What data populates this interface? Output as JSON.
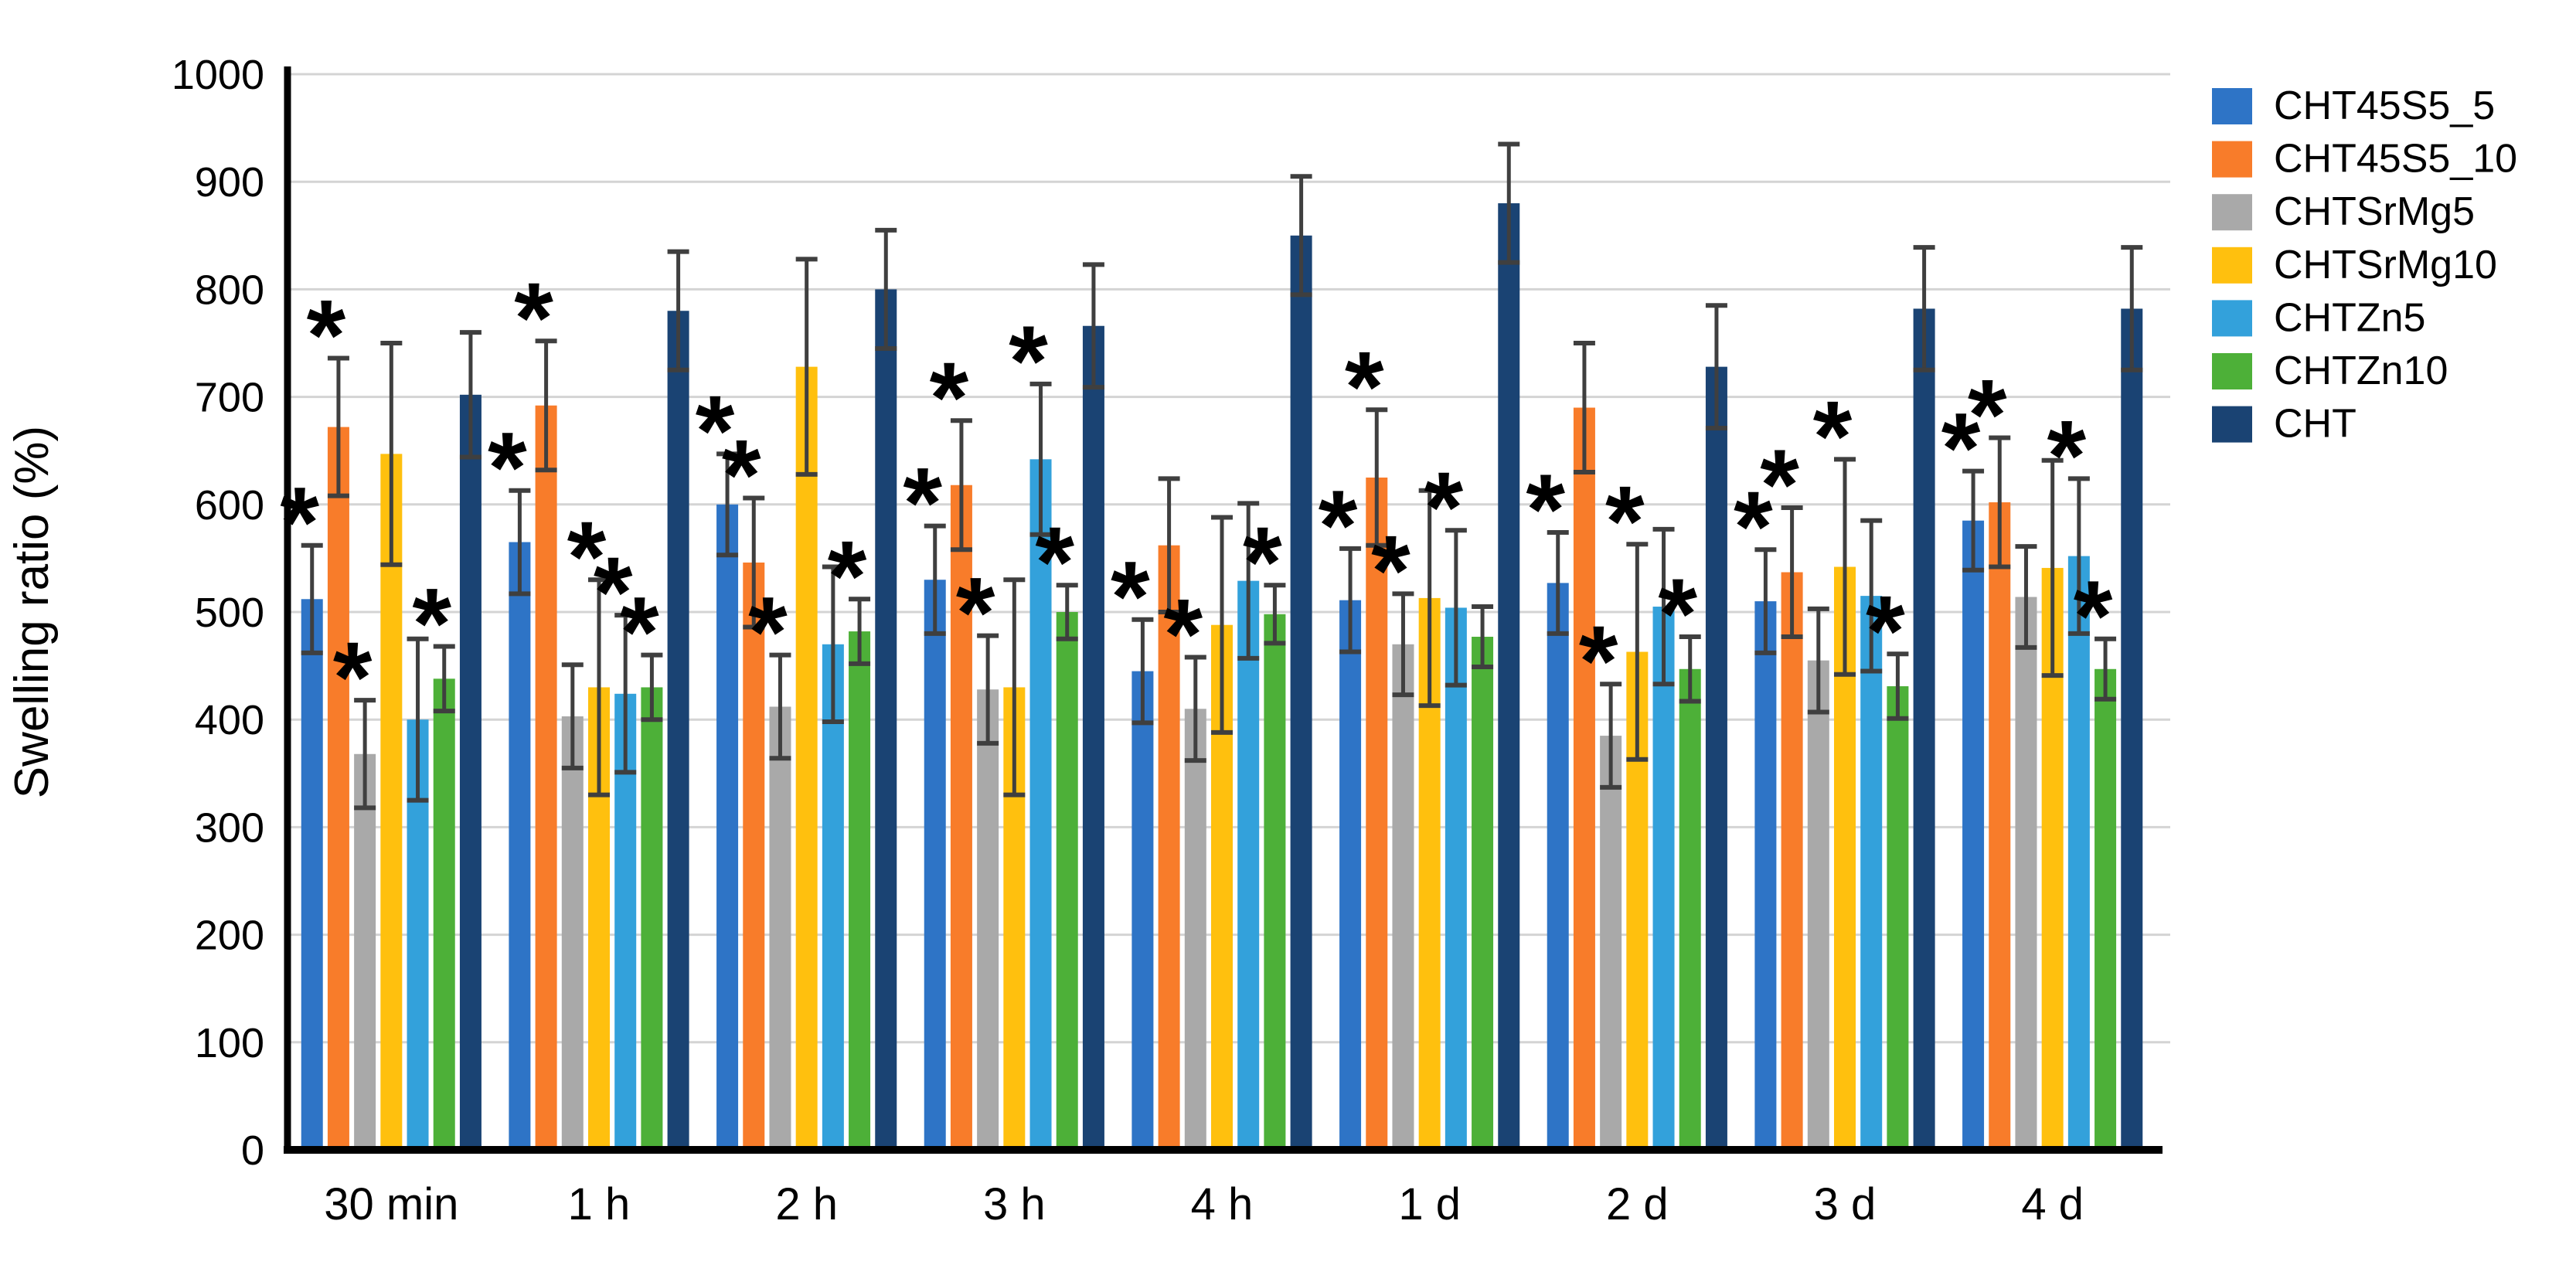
{
  "chart_data": {
    "type": "bar",
    "title": "",
    "ylabel": "Swelling ratio (%)",
    "xlabel": "",
    "ylim": [
      0,
      1000
    ],
    "ytick_step": 100,
    "grid": true,
    "legend_position": "right",
    "significance_marker": "*",
    "grid_color": "#D4D4D4",
    "error_bar_color": "#3F3F3F",
    "axis_color": "#000000",
    "categories": [
      "30 min",
      "1 h",
      "2 h",
      "3 h",
      "4 h",
      "1 d",
      "2 d",
      "3 d",
      "4 d"
    ],
    "series": [
      {
        "name": "CHT45S5_5",
        "color": "#2E74C6",
        "values": [
          512,
          565,
          600,
          530,
          445,
          511,
          527,
          510,
          585
        ],
        "errors": [
          50,
          48,
          47,
          50,
          48,
          48,
          47,
          48,
          46
        ],
        "starred": [
          true,
          true,
          true,
          true,
          true,
          true,
          true,
          true,
          true
        ]
      },
      {
        "name": "CHT45S5_10",
        "color": "#F87C2A",
        "values": [
          672,
          692,
          546,
          618,
          562,
          625,
          690,
          537,
          602
        ],
        "errors": [
          64,
          60,
          60,
          60,
          62,
          63,
          60,
          60,
          60
        ],
        "starred": [
          true,
          true,
          true,
          true,
          false,
          true,
          false,
          true,
          true
        ]
      },
      {
        "name": "CHTSrMg5",
        "color": "#A9A9A9",
        "values": [
          368,
          403,
          412,
          428,
          410,
          470,
          385,
          455,
          514
        ],
        "errors": [
          50,
          48,
          48,
          50,
          48,
          47,
          48,
          48,
          47
        ],
        "starred": [
          true,
          false,
          true,
          true,
          true,
          true,
          true,
          false,
          false
        ]
      },
      {
        "name": "CHTSrMg10",
        "color": "#FFC00E",
        "values": [
          647,
          430,
          728,
          430,
          488,
          513,
          463,
          542,
          541
        ],
        "errors": [
          103,
          100,
          100,
          100,
          100,
          100,
          100,
          100,
          100
        ],
        "starred": [
          false,
          true,
          false,
          false,
          false,
          false,
          true,
          true,
          false
        ]
      },
      {
        "name": "CHTZn5",
        "color": "#33A1DB",
        "values": [
          400,
          424,
          470,
          642,
          529,
          504,
          505,
          515,
          552
        ],
        "errors": [
          75,
          73,
          72,
          70,
          72,
          72,
          72,
          70,
          72
        ],
        "starred": [
          false,
          true,
          false,
          true,
          false,
          true,
          false,
          false,
          true
        ]
      },
      {
        "name": "CHTZn10",
        "color": "#4DB038",
        "values": [
          438,
          430,
          482,
          500,
          498,
          477,
          447,
          431,
          447
        ],
        "errors": [
          30,
          30,
          30,
          25,
          27,
          28,
          30,
          30,
          28
        ],
        "starred": [
          true,
          true,
          true,
          true,
          true,
          false,
          true,
          true,
          true
        ]
      },
      {
        "name": "CHT",
        "color": "#1A4373",
        "values": [
          702,
          780,
          800,
          766,
          850,
          880,
          728,
          782,
          782
        ],
        "errors": [
          58,
          55,
          55,
          57,
          55,
          55,
          57,
          57,
          57
        ],
        "starred": [
          false,
          false,
          false,
          false,
          false,
          false,
          false,
          false,
          false
        ]
      }
    ]
  }
}
